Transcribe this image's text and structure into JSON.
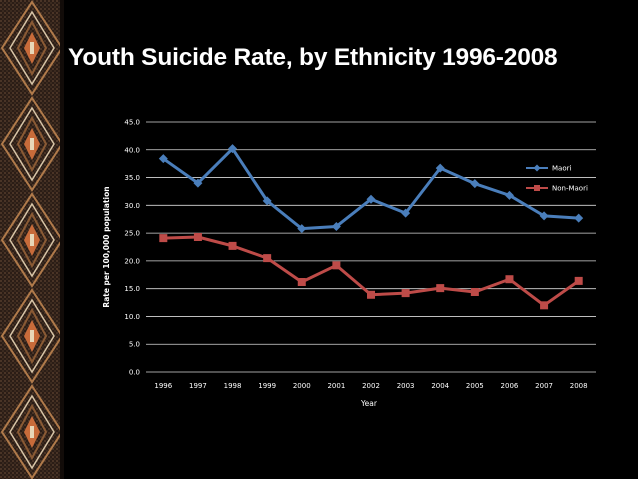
{
  "slide": {
    "title": "Youth Suicide Rate, by Ethnicity 1996-2008"
  },
  "colors": {
    "background": "#000000",
    "maori_line": "#4a7ebb",
    "non_maori_line": "#be4b48",
    "grid": "#d9d9d9",
    "text": "#ffffff"
  },
  "chart_data": {
    "type": "line",
    "title": "",
    "xlabel": "Year",
    "ylabel": "Rate per 100,000 population",
    "categories": [
      "1996",
      "1997",
      "1998",
      "1999",
      "2000",
      "2001",
      "2002",
      "2003",
      "2004",
      "2005",
      "2006",
      "2007",
      "2008"
    ],
    "ylim": [
      0,
      45
    ],
    "yticks": [
      "0.0",
      "5.0",
      "10.0",
      "15.0",
      "20.0",
      "25.0",
      "30.0",
      "35.0",
      "40.0",
      "45.0"
    ],
    "grid": "horizontal",
    "legend_position": "right",
    "series": [
      {
        "name": "Maori",
        "marker": "diamond",
        "values": [
          38.4,
          34.0,
          40.2,
          30.8,
          25.8,
          26.2,
          31.1,
          28.6,
          36.7,
          33.9,
          31.8,
          28.1,
          27.7
        ]
      },
      {
        "name": "Non-Maori",
        "marker": "square",
        "values": [
          24.1,
          24.3,
          22.7,
          20.5,
          16.2,
          19.2,
          13.9,
          14.2,
          15.1,
          14.4,
          16.7,
          12.0,
          16.4
        ]
      }
    ]
  }
}
